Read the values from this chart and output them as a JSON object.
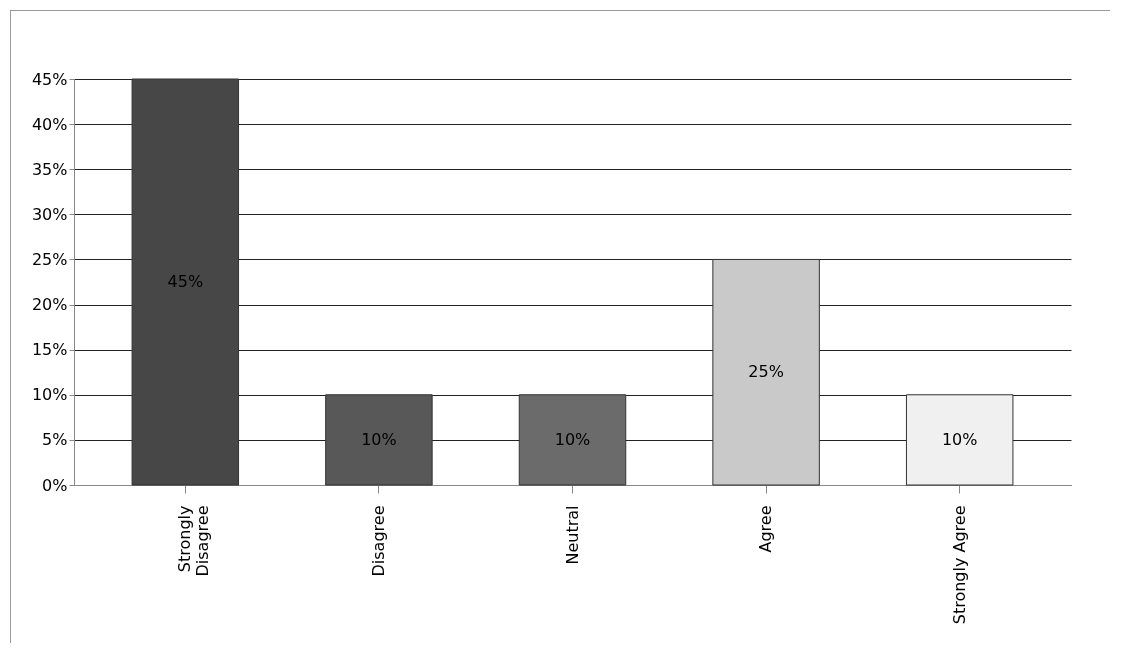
{
  "chart_data": {
    "type": "bar",
    "categories": [
      "Strongly Disagree",
      "Disagree",
      "Neutral",
      "Agree",
      "Strongly Agree"
    ],
    "values": [
      45,
      10,
      10,
      25,
      10
    ],
    "colors": [
      "#474747",
      "#585858",
      "#6b6b6b",
      "#c9c9c9",
      "#f0f0f0"
    ],
    "value_labels": [
      "45%",
      "10%",
      "10%",
      "25%",
      "10%"
    ],
    "ylim": [
      0,
      45
    ],
    "yticks": [
      {
        "value": 0,
        "label": "0%"
      },
      {
        "value": 5,
        "label": "5%"
      },
      {
        "value": 10,
        "label": "10%"
      },
      {
        "value": 15,
        "label": "15%"
      },
      {
        "value": 20,
        "label": "20%"
      },
      {
        "value": 25,
        "label": "25%"
      },
      {
        "value": 30,
        "label": "30%"
      },
      {
        "value": 35,
        "label": "35%"
      },
      {
        "value": 40,
        "label": "40%"
      },
      {
        "value": 45,
        "label": "45%"
      }
    ],
    "grid": "y"
  }
}
